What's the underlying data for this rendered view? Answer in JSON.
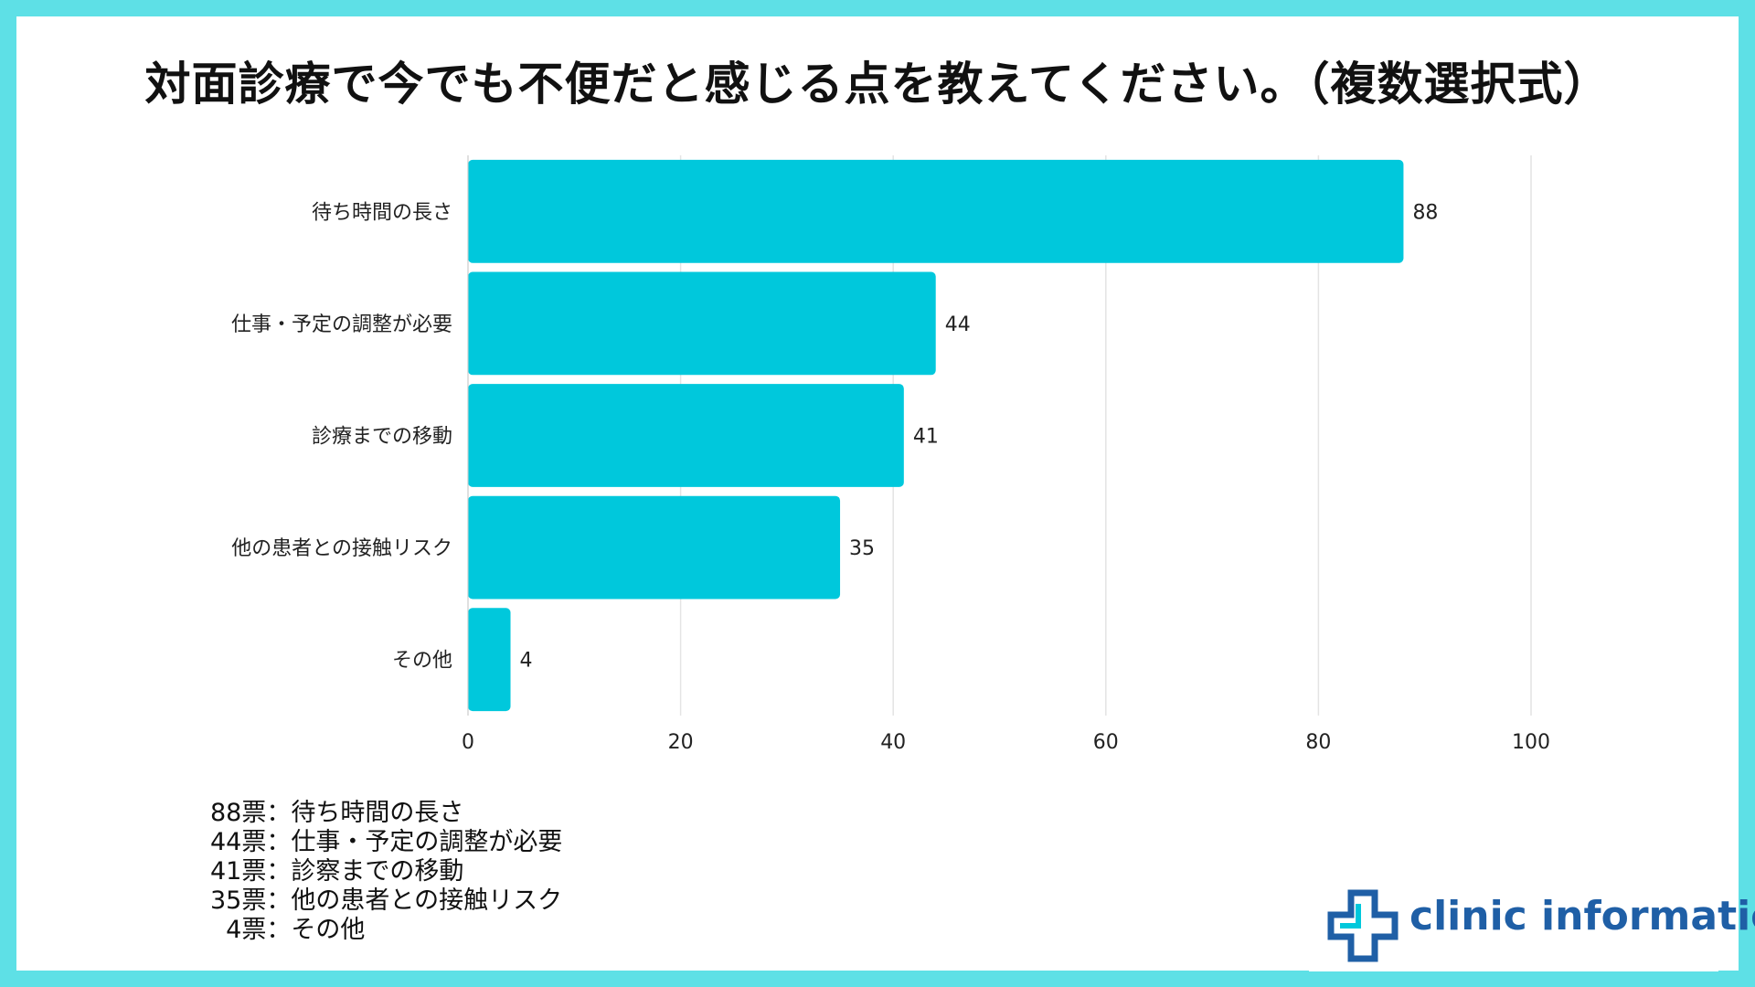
{
  "title": "対面診療で今でも不便だと感じる点を教えてください。（複数選択式）",
  "colors": {
    "bar": "#00c8dc",
    "border": "#5ee0e6",
    "grid": "#e4e4e4",
    "logo": "#1f5fa6"
  },
  "chart_data": {
    "type": "bar",
    "orientation": "horizontal",
    "title": "対面診療で今でも不便だと感じる点を教えてください。（複数選択式）",
    "categories": [
      "待ち時間の長さ",
      "仕事・予定の調整が必要",
      "診療までの移動",
      "他の患者との接触リスク",
      "その他"
    ],
    "values": [
      88,
      44,
      41,
      35,
      4
    ],
    "xlim": [
      0,
      100
    ],
    "xticks": [
      0,
      20,
      40,
      60,
      80,
      100
    ],
    "xlabel": "",
    "ylabel": "",
    "grid": true,
    "data_labels": true
  },
  "legend_lines": [
    "88票：待ち時間の長さ",
    "44票：仕事・予定の調整が必要",
    "41票：診察までの移動",
    "35票：他の患者との接触リスク",
    "  4票：その他"
  ],
  "logo": {
    "icon": "medical-cross-icon",
    "text": "clinic information"
  }
}
